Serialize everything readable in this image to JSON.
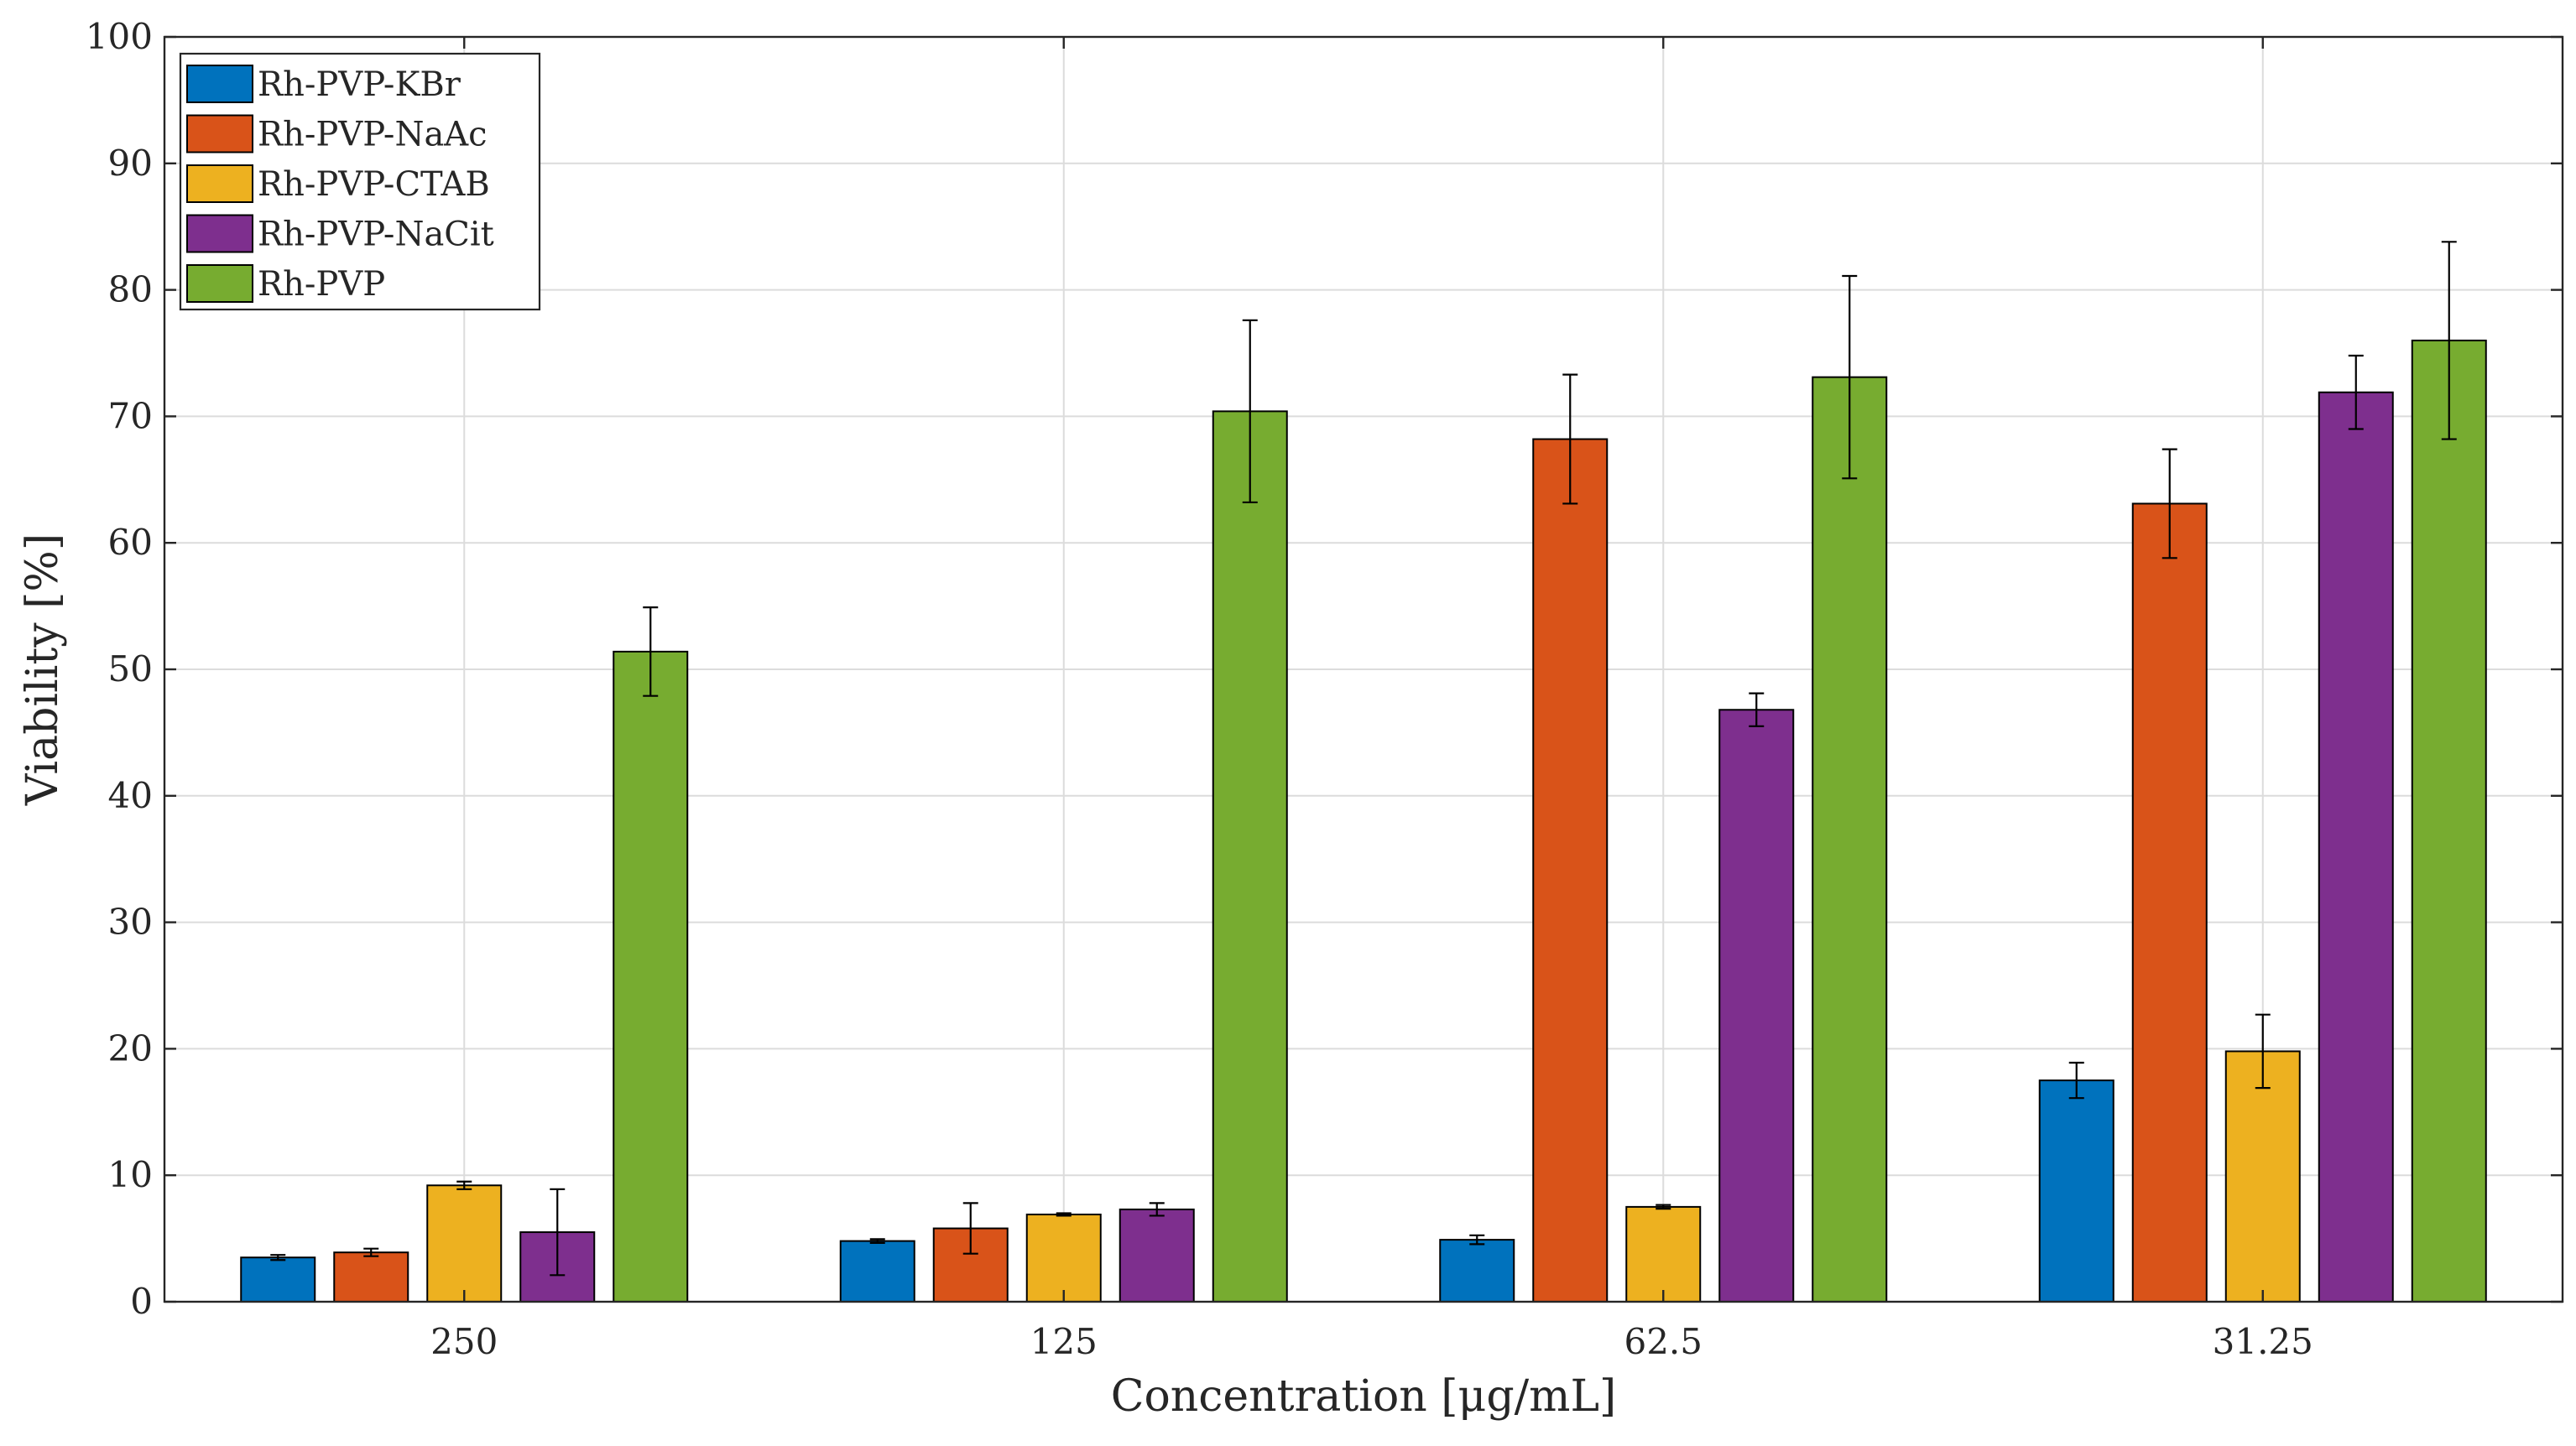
{
  "chart_data": {
    "type": "bar",
    "title": "",
    "xlabel": "Concentration [μg/mL]",
    "ylabel": "Viability [%]",
    "ylim": [
      0,
      100
    ],
    "yticks": [
      0,
      10,
      20,
      30,
      40,
      50,
      60,
      70,
      80,
      90,
      100
    ],
    "grid": true,
    "legend_position": "top-left",
    "categories": [
      "250",
      "125",
      "62.5",
      "31.25"
    ],
    "series": [
      {
        "name": "Rh-PVP-KBr",
        "color": "#0072BD",
        "values": [
          3.5,
          4.8,
          4.9,
          17.5
        ],
        "errors": [
          0.2,
          0.15,
          0.35,
          1.4
        ]
      },
      {
        "name": "Rh-PVP-NaAc",
        "color": "#D95319",
        "values": [
          3.9,
          5.8,
          68.2,
          63.1
        ],
        "errors": [
          0.3,
          2.0,
          5.1,
          4.3
        ]
      },
      {
        "name": "Rh-PVP-CTAB",
        "color": "#EDB120",
        "values": [
          9.2,
          6.9,
          7.5,
          19.8
        ],
        "errors": [
          0.3,
          0.1,
          0.15,
          2.9
        ]
      },
      {
        "name": "Rh-PVP-NaCit",
        "color": "#7E2F8E",
        "values": [
          5.5,
          7.3,
          46.8,
          71.9
        ],
        "errors": [
          3.4,
          0.5,
          1.3,
          2.9
        ]
      },
      {
        "name": "Rh-PVP",
        "color": "#77AC30",
        "values": [
          51.4,
          70.4,
          73.1,
          76.0
        ],
        "errors": [
          3.5,
          7.2,
          8.0,
          7.8
        ]
      }
    ]
  }
}
